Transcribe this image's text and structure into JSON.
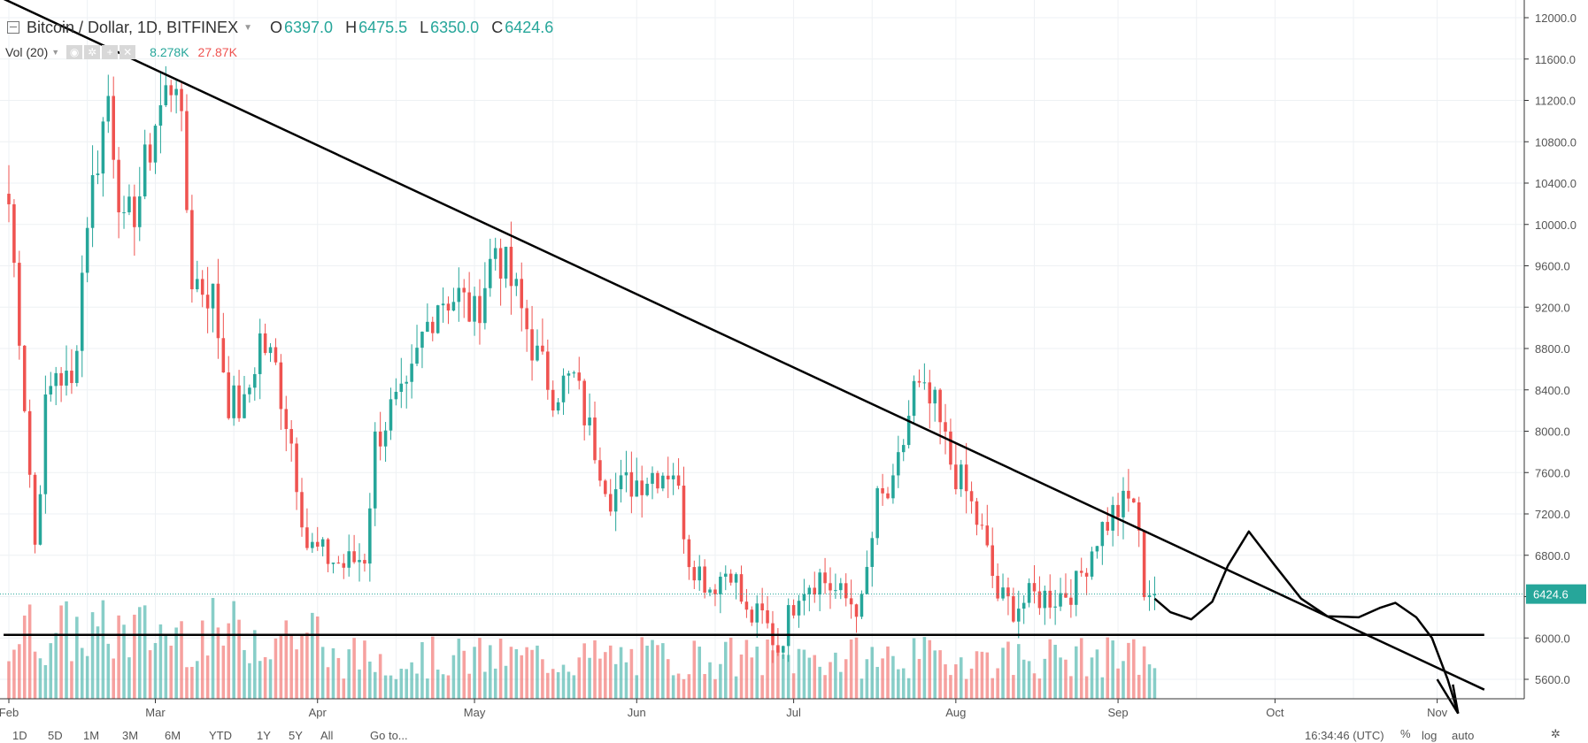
{
  "header": {
    "symbol": "Bitcoin / Dollar, 1D, BITFINEX",
    "ohlc": [
      {
        "key": "O",
        "value": "6397.0"
      },
      {
        "key": "H",
        "value": "6475.5"
      },
      {
        "key": "L",
        "value": "6350.0"
      },
      {
        "key": "C",
        "value": "6424.6"
      }
    ],
    "volume_label": "Vol (20)",
    "volume_value": "8.278K",
    "volume_ma": "27.87K"
  },
  "colors": {
    "up": "#26a69a",
    "down": "#ef5350",
    "grid": "#eef1f4",
    "axis_text": "#555555",
    "price_tag": "#26a69a",
    "drawing": "#000000"
  },
  "chart_data": {
    "type": "candlestick",
    "ylim": [
      5200,
      12100
    ],
    "y_ticks": [
      5600,
      6000,
      6400,
      6800,
      7200,
      7600,
      8000,
      8400,
      8800,
      9200,
      9600,
      10000,
      10400,
      10800,
      11200,
      11600,
      12000
    ],
    "y_tick_labels": [
      "5600.0",
      "6000.0",
      "6400.0",
      "6800.0",
      "7200.0",
      "7600.0",
      "8000.0",
      "8400.0",
      "8800.0",
      "9200.0",
      "9600.0",
      "10000.0",
      "10400.0",
      "10800.0",
      "11200.0",
      "11600.0",
      "12000.0"
    ],
    "x_start": "2018-02-01",
    "x_end": "2018-11-08",
    "month_labels": [
      {
        "date": "2018-02-01",
        "label": "Feb"
      },
      {
        "date": "2018-03-01",
        "label": "Mar"
      },
      {
        "date": "2018-04-01",
        "label": "Apr"
      },
      {
        "date": "2018-05-01",
        "label": "May"
      },
      {
        "date": "2018-06-01",
        "label": "Jun"
      },
      {
        "date": "2018-07-01",
        "label": "Jul"
      },
      {
        "date": "2018-08-01",
        "label": "Aug"
      },
      {
        "date": "2018-09-01",
        "label": "Sep"
      },
      {
        "date": "2018-10-01",
        "label": "Oct"
      },
      {
        "date": "2018-11-01",
        "label": "Nov"
      }
    ],
    "last_price": 6424.6,
    "last_price_label": "6424.6",
    "anchors": [
      [
        "2018-02-01",
        10200
      ],
      [
        "2018-02-03",
        9000
      ],
      [
        "2018-02-06",
        6900
      ],
      [
        "2018-02-08",
        8200
      ],
      [
        "2018-02-10",
        8600
      ],
      [
        "2018-02-13",
        8400
      ],
      [
        "2018-02-16",
        10100
      ],
      [
        "2018-02-20",
        11250
      ],
      [
        "2018-02-23",
        9900
      ],
      [
        "2018-02-26",
        10300
      ],
      [
        "2018-03-01",
        11000
      ],
      [
        "2018-03-05",
        11500
      ],
      [
        "2018-03-08",
        9500
      ],
      [
        "2018-03-12",
        9300
      ],
      [
        "2018-03-15",
        8300
      ],
      [
        "2018-03-18",
        8200
      ],
      [
        "2018-03-21",
        8900
      ],
      [
        "2018-03-24",
        8600
      ],
      [
        "2018-03-27",
        7900
      ],
      [
        "2018-03-30",
        6900
      ],
      [
        "2018-04-02",
        6800
      ],
      [
        "2018-04-06",
        6700
      ],
      [
        "2018-04-10",
        6800
      ],
      [
        "2018-04-12",
        7900
      ],
      [
        "2018-04-15",
        8200
      ],
      [
        "2018-04-18",
        8300
      ],
      [
        "2018-04-21",
        8900
      ],
      [
        "2018-04-24",
        9300
      ],
      [
        "2018-04-28",
        9300
      ],
      [
        "2018-05-01",
        9100
      ],
      [
        "2018-05-05",
        9800
      ],
      [
        "2018-05-09",
        9300
      ],
      [
        "2018-05-13",
        8700
      ],
      [
        "2018-05-16",
        8400
      ],
      [
        "2018-05-20",
        8500
      ],
      [
        "2018-05-23",
        8000
      ],
      [
        "2018-05-27",
        7400
      ],
      [
        "2018-05-31",
        7500
      ],
      [
        "2018-06-04",
        7600
      ],
      [
        "2018-06-08",
        7650
      ],
      [
        "2018-06-11",
        6800
      ],
      [
        "2018-06-15",
        6500
      ],
      [
        "2018-06-19",
        6700
      ],
      [
        "2018-06-22",
        6200
      ],
      [
        "2018-06-25",
        6200
      ],
      [
        "2018-06-28",
        5900
      ],
      [
        "2018-07-02",
        6500
      ],
      [
        "2018-07-06",
        6600
      ],
      [
        "2018-07-10",
        6400
      ],
      [
        "2018-07-14",
        6300
      ],
      [
        "2018-07-17",
        7300
      ],
      [
        "2018-07-20",
        7400
      ],
      [
        "2018-07-24",
        8400
      ],
      [
        "2018-07-28",
        8200
      ],
      [
        "2018-07-31",
        7700
      ],
      [
        "2018-08-03",
        7400
      ],
      [
        "2018-08-06",
        7000
      ],
      [
        "2018-08-09",
        6400
      ],
      [
        "2018-08-12",
        6300
      ],
      [
        "2018-08-16",
        6400
      ],
      [
        "2018-08-20",
        6400
      ],
      [
        "2018-08-24",
        6500
      ],
      [
        "2018-08-28",
        7000
      ],
      [
        "2018-08-31",
        7200
      ],
      [
        "2018-09-04",
        7350
      ],
      [
        "2018-09-06",
        6500
      ],
      [
        "2018-09-08",
        6424.6
      ]
    ],
    "volume_ylim": [
      0,
      300000
    ]
  },
  "drawings": {
    "downtrend_line": [
      [
        "2018-01-26",
        12300
      ],
      [
        "2018-11-10",
        5500
      ]
    ],
    "support_line": [
      [
        "2018-01-31",
        6030
      ],
      [
        "2018-11-10",
        6030
      ]
    ],
    "projection": [
      [
        "2018-09-08",
        6380
      ],
      [
        "2018-09-11",
        6250
      ],
      [
        "2018-09-15",
        6180
      ],
      [
        "2018-09-19",
        6350
      ],
      [
        "2018-09-22",
        6700
      ],
      [
        "2018-09-26",
        7030
      ],
      [
        "2018-10-01",
        6700
      ],
      [
        "2018-10-06",
        6380
      ],
      [
        "2018-10-11",
        6210
      ],
      [
        "2018-10-17",
        6200
      ],
      [
        "2018-10-21",
        6290
      ],
      [
        "2018-10-24",
        6340
      ],
      [
        "2018-10-28",
        6200
      ],
      [
        "2018-10-31",
        6000
      ],
      [
        "2018-11-03",
        5600
      ],
      [
        "2018-11-05",
        5270
      ]
    ],
    "arrow_head": [
      [
        "2018-11-01",
        5600
      ],
      [
        "2018-11-05",
        5270
      ],
      [
        "2018-11-04",
        5550
      ]
    ]
  },
  "toolbar": {
    "periods": [
      "1D",
      "5D",
      "1M",
      "3M",
      "6M",
      "YTD",
      "1Y",
      "5Y",
      "All"
    ],
    "goto": "Go to...",
    "time": "16:34:46 (UTC)",
    "pct": "%",
    "log": "log",
    "auto": "auto"
  }
}
